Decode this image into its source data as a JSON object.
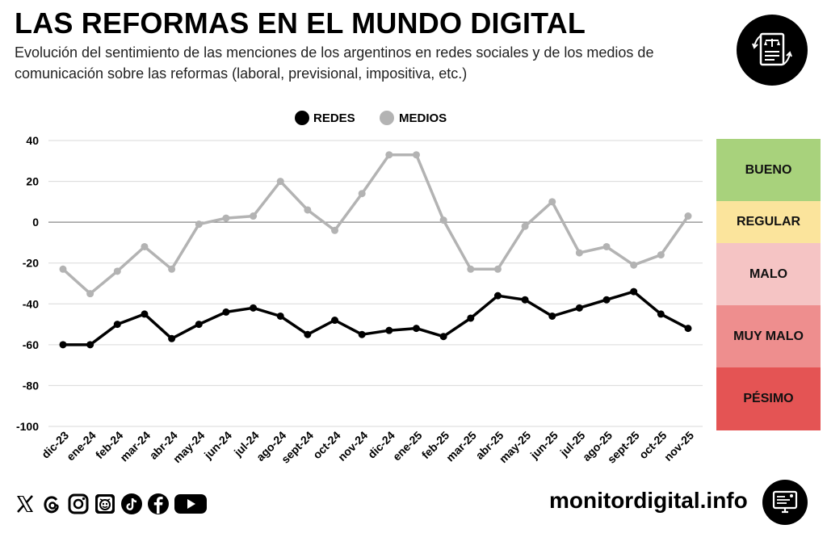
{
  "header": {
    "title": "LAS REFORMAS EN EL MUNDO DIGITAL",
    "subtitle": "Evolución del sentimiento de las menciones de los argentinos en redes sociales y de los medios de comunicación sobre las reformas (laboral, previsional, impositiva, etc.)",
    "logo_icon": "document-scale-icon"
  },
  "chart_data": {
    "type": "line",
    "title": "",
    "xlabel": "",
    "ylabel": "",
    "ylim": [
      -100,
      40
    ],
    "yticks": [
      40,
      20,
      0,
      -20,
      -40,
      -60,
      -80,
      -100
    ],
    "ytick_labels": [
      "40",
      "20",
      "0",
      "-20",
      "-40",
      "-60",
      "-80",
      "-100"
    ],
    "grid": true,
    "legend_position": "top-center",
    "categories": [
      "dic-23",
      "ene-24",
      "feb-24",
      "mar-24",
      "abr-24",
      "may-24",
      "jun-24",
      "jul-24",
      "ago-24",
      "sept-24",
      "oct-24",
      "nov-24",
      "dic-24",
      "ene-25",
      "feb-25",
      "mar-25",
      "abr-25",
      "may-25",
      "jun-25",
      "jul-25",
      "ago-25",
      "sept-25",
      "oct-25",
      "nov-25"
    ],
    "series": [
      {
        "name": "REDES",
        "color": "#000000",
        "values": [
          -60,
          -60,
          -50,
          -45,
          -57,
          -50,
          -44,
          -42,
          -46,
          -55,
          -48,
          -55,
          -53,
          -52,
          -56,
          -47,
          -36,
          -38,
          -46,
          -42,
          -38,
          -34,
          -45,
          -52
        ]
      },
      {
        "name": "MEDIOS",
        "color": "#b3b3b3",
        "values": [
          -23,
          -35,
          -24,
          -12,
          -23,
          -1,
          2,
          3,
          20,
          6,
          -4,
          14,
          33,
          33,
          1,
          -23,
          -23,
          -2,
          10,
          -15,
          -12,
          -21,
          -16,
          3
        ]
      }
    ]
  },
  "sentiment_scale": [
    {
      "label": "BUENO",
      "color": "#a8d27c"
    },
    {
      "label": "REGULAR",
      "color": "#fbe49c"
    },
    {
      "label": "MALO",
      "color": "#f5c4c4"
    },
    {
      "label": "MUY MALO",
      "color": "#ee8e8e"
    },
    {
      "label": "PÉSIMO",
      "color": "#e45454"
    }
  ],
  "footer": {
    "social_icons": [
      "x-icon",
      "threads-icon",
      "instagram-icon",
      "clarin-icon",
      "tiktok-icon",
      "facebook-icon",
      "youtube-icon"
    ],
    "site": "monitordigital.info",
    "monitor_icon": "monitor-icon"
  }
}
